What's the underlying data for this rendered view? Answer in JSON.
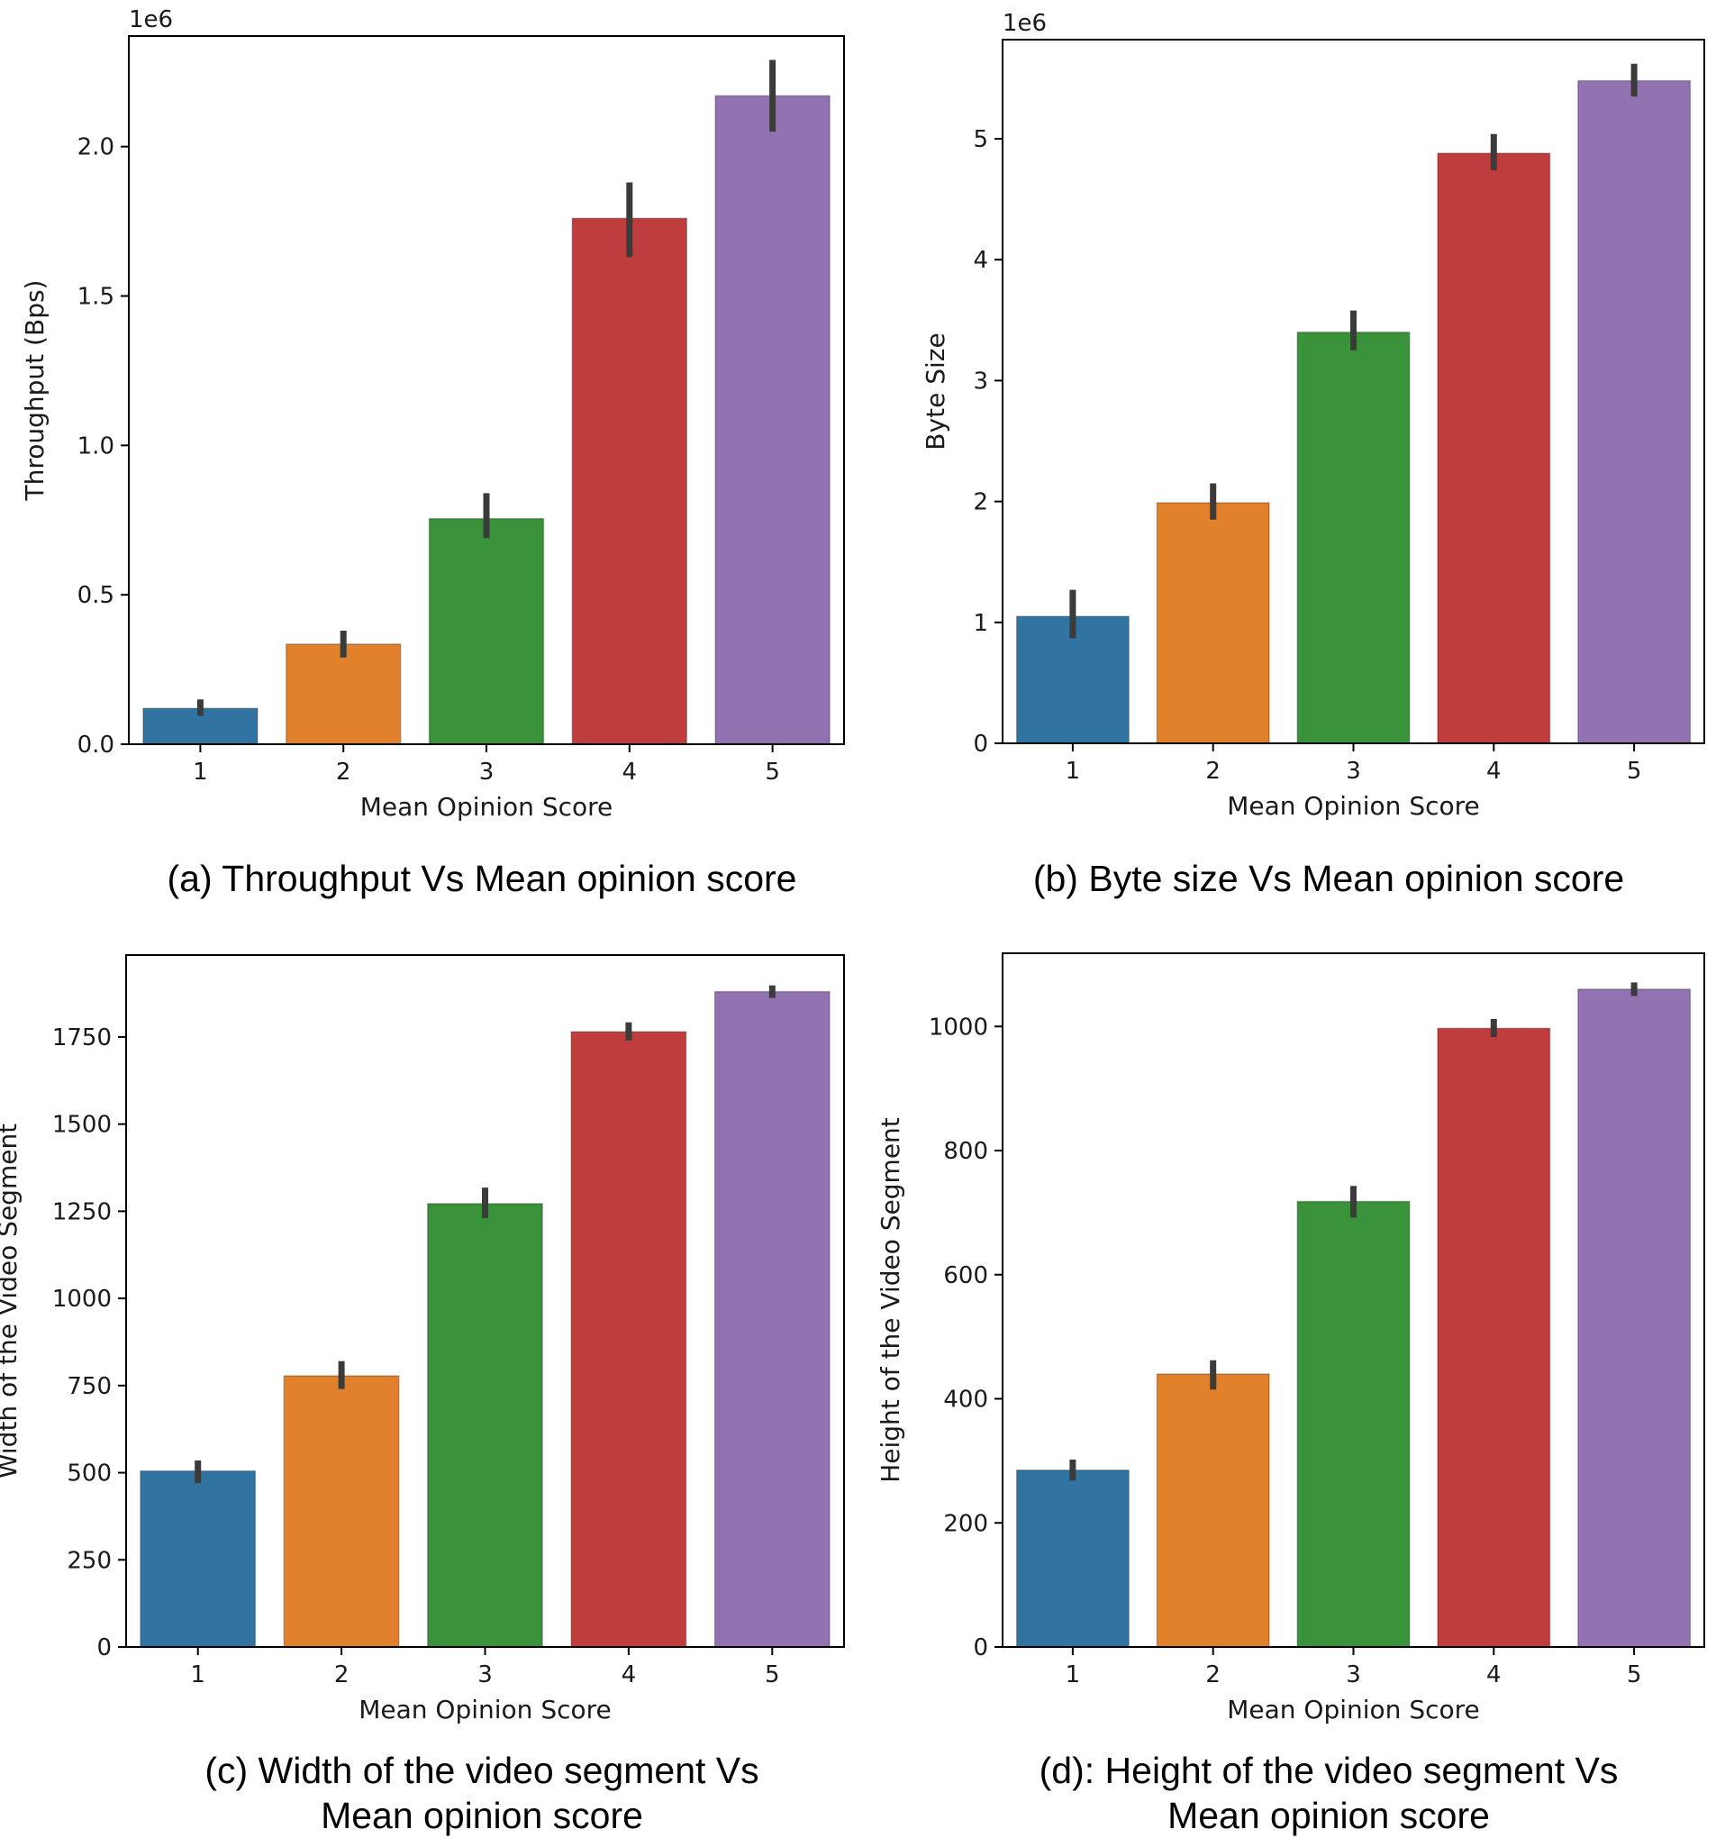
{
  "chart_data": [
    {
      "type": "bar",
      "title": "",
      "caption": "(a) Throughput Vs Mean opinion score",
      "xlabel": "Mean Opinion Score",
      "ylabel": "Throughput (Bps)",
      "offset_text": "1e6",
      "scale": 1000000,
      "categories": [
        "1",
        "2",
        "3",
        "4",
        "5"
      ],
      "values": [
        120000,
        335000,
        755000,
        1760000,
        2170000
      ],
      "error_low": [
        95000,
        290000,
        690000,
        1630000,
        2050000
      ],
      "error_high": [
        150000,
        380000,
        840000,
        1880000,
        2290000
      ],
      "ylim": [
        0,
        2370000
      ],
      "yticks": [
        0,
        500000,
        1000000,
        1500000,
        2000000
      ],
      "ytick_labels": [
        "0.0",
        "0.5",
        "1.0",
        "1.5",
        "2.0"
      ],
      "colors": [
        "#3274a1",
        "#e1812c",
        "#3a923a",
        "#c03d3e",
        "#9372b2"
      ]
    },
    {
      "type": "bar",
      "title": "",
      "caption": "(b) Byte size Vs Mean opinion score",
      "xlabel": "Mean Opinion Score",
      "ylabel": "Byte Size",
      "offset_text": "1e6",
      "scale": 1000000,
      "categories": [
        "1",
        "2",
        "3",
        "4",
        "5"
      ],
      "values": [
        1050000,
        1990000,
        3400000,
        4880000,
        5480000
      ],
      "error_low": [
        870000,
        1850000,
        3250000,
        4740000,
        5350000
      ],
      "error_high": [
        1270000,
        2150000,
        3580000,
        5040000,
        5620000
      ],
      "ylim": [
        0,
        5820000
      ],
      "yticks": [
        0,
        1000000,
        2000000,
        3000000,
        4000000,
        5000000
      ],
      "ytick_labels": [
        "0",
        "1",
        "2",
        "3",
        "4",
        "5"
      ],
      "colors": [
        "#3274a1",
        "#e1812c",
        "#3a923a",
        "#c03d3e",
        "#9372b2"
      ]
    },
    {
      "type": "bar",
      "title": "",
      "caption": "(c) Width of the video segment Vs Mean opinion score",
      "caption_lines": [
        "(c) Width of the video segment Vs",
        "Mean opinion score"
      ],
      "xlabel": "Mean Opinion Score",
      "ylabel": "Width of the Video Segment",
      "offset_text": "",
      "scale": 1,
      "categories": [
        "1",
        "2",
        "3",
        "4",
        "5"
      ],
      "values": [
        505,
        778,
        1272,
        1765,
        1880
      ],
      "error_low": [
        470,
        740,
        1230,
        1740,
        1862
      ],
      "error_high": [
        535,
        820,
        1318,
        1792,
        1898
      ],
      "ylim": [
        0,
        1985
      ],
      "yticks": [
        0,
        250,
        500,
        750,
        1000,
        1250,
        1500,
        1750
      ],
      "ytick_labels": [
        "0",
        "250",
        "500",
        "750",
        "1000",
        "1250",
        "1500",
        "1750"
      ],
      "colors": [
        "#3274a1",
        "#e1812c",
        "#3a923a",
        "#c03d3e",
        "#9372b2"
      ]
    },
    {
      "type": "bar",
      "title": "",
      "caption": "(d): Height of the video segment Vs Mean opinion score",
      "caption_lines": [
        "(d): Height of the video segment Vs",
        "Mean opinion score"
      ],
      "xlabel": "Mean Opinion Score",
      "ylabel": "Height of the Video Segment",
      "offset_text": "",
      "scale": 1,
      "categories": [
        "1",
        "2",
        "3",
        "4",
        "5"
      ],
      "values": [
        285,
        440,
        718,
        997,
        1060
      ],
      "error_low": [
        268,
        415,
        692,
        983,
        1049
      ],
      "error_high": [
        302,
        462,
        743,
        1012,
        1071
      ],
      "ylim": [
        0,
        1118
      ],
      "yticks": [
        0,
        200,
        400,
        600,
        800,
        1000
      ],
      "ytick_labels": [
        "0",
        "200",
        "400",
        "600",
        "800",
        "1000"
      ],
      "colors": [
        "#3274a1",
        "#e1812c",
        "#3a923a",
        "#c03d3e",
        "#9372b2"
      ]
    }
  ]
}
